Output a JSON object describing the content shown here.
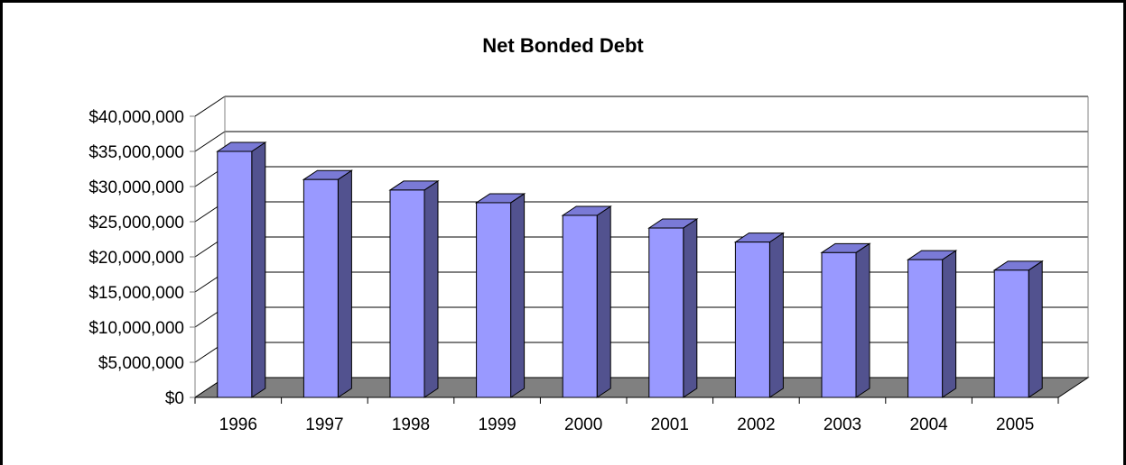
{
  "chart_data": {
    "type": "bar",
    "title": "Net Bonded Debt",
    "categories": [
      "1996",
      "1997",
      "1998",
      "1999",
      "2000",
      "2001",
      "2002",
      "2003",
      "2004",
      "2005"
    ],
    "series": [
      {
        "values": [
          35000000,
          31000000,
          29500000,
          27700000,
          25900000,
          24100000,
          22100000,
          20600000,
          19600000,
          18100000
        ]
      }
    ],
    "ylim": [
      0,
      40000000
    ],
    "yticks": [
      0,
      5000000,
      10000000,
      15000000,
      20000000,
      25000000,
      30000000,
      35000000,
      40000000
    ],
    "ytick_labels": [
      "$0",
      "$5,000,000",
      "$10,000,000",
      "$15,000,000",
      "$20,000,000",
      "$25,000,000",
      "$30,000,000",
      "$35,000,000",
      "$40,000,000"
    ],
    "grid": true,
    "legend": "none",
    "style": "3d-column",
    "colors": {
      "bar_front": "#9999ff",
      "bar_side": "#52528f",
      "bar_top": "#7a7ad6",
      "floor": "#808080",
      "gridline": "#000000"
    }
  }
}
